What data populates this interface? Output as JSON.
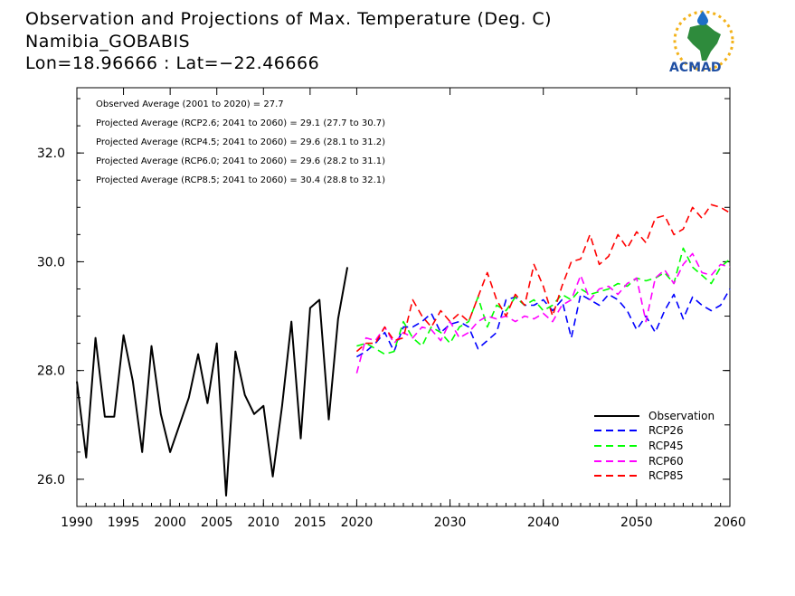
{
  "title_lines": [
    "Observation and Projections of Max. Temperature (Deg. C)",
    "Namibia_GOBABIS",
    "Lon=18.96666 : Lat=−22.46666"
  ],
  "logo": {
    "text": "ACMAD",
    "icon": "africa-map-icon"
  },
  "annotations": [
    "Observed Average (2001 to 2020) = 27.7",
    "Projected Average (RCP2.6; 2041 to 2060) = 29.1 (27.7 to 30.7)",
    "Projected Average (RCP4.5; 2041 to 2060) = 29.6 (28.1 to 31.2)",
    "Projected Average (RCP6.0; 2041 to 2060) = 29.6 (28.2 to 31.1)",
    "Projected Average (RCP8.5; 2041 to 2060) = 30.4 (28.8 to 32.1)"
  ],
  "chart_data": {
    "type": "line",
    "xlim": [
      1990,
      2060
    ],
    "ylim": [
      25.5,
      33.2
    ],
    "x_ticks": [
      1990,
      1995,
      2000,
      2005,
      2010,
      2015,
      2020,
      2030,
      2040,
      2050,
      2060
    ],
    "y_ticks": [
      26.0,
      28.0,
      30.0,
      32.0
    ],
    "y_tick_labels": [
      "26.0",
      "28.0",
      "30.0",
      "32.0"
    ],
    "grid": false,
    "legend_position": "bottom-right",
    "series": [
      {
        "name": "Observation",
        "color": "#000000",
        "dash": "solid",
        "x": [
          1990,
          1991,
          1992,
          1993,
          1994,
          1995,
          1996,
          1997,
          1998,
          1999,
          2000,
          2001,
          2002,
          2003,
          2004,
          2005,
          2006,
          2007,
          2008,
          2009,
          2010,
          2011,
          2012,
          2013,
          2014,
          2015,
          2016,
          2017,
          2018,
          2019
        ],
        "y": [
          27.8,
          26.4,
          28.6,
          27.15,
          27.15,
          28.65,
          27.8,
          26.5,
          28.45,
          27.2,
          26.5,
          27.0,
          27.5,
          28.3,
          27.4,
          28.5,
          25.7,
          28.35,
          27.55,
          27.2,
          27.35,
          26.05,
          27.35,
          28.9,
          26.75,
          29.15,
          29.3,
          27.1,
          28.95,
          29.9
        ]
      },
      {
        "name": "RCP26",
        "color": "#0000ff",
        "dash": "dashed",
        "x": [
          2020,
          2021,
          2022,
          2023,
          2024,
          2025,
          2026,
          2027,
          2028,
          2029,
          2030,
          2031,
          2032,
          2033,
          2034,
          2035,
          2036,
          2037,
          2038,
          2039,
          2040,
          2041,
          2042,
          2043,
          2044,
          2045,
          2046,
          2047,
          2048,
          2049,
          2050,
          2051,
          2052,
          2053,
          2054,
          2055,
          2056,
          2057,
          2058,
          2059,
          2060
        ],
        "y": [
          28.25,
          28.35,
          28.5,
          28.7,
          28.35,
          28.8,
          28.8,
          28.9,
          29.05,
          28.7,
          28.85,
          28.9,
          28.8,
          28.4,
          28.55,
          28.7,
          29.3,
          29.35,
          29.2,
          29.2,
          29.3,
          29.1,
          29.3,
          28.6,
          29.4,
          29.3,
          29.2,
          29.4,
          29.3,
          29.1,
          28.75,
          29.0,
          28.7,
          29.1,
          29.4,
          28.95,
          29.35,
          29.2,
          29.1,
          29.2,
          29.5
        ]
      },
      {
        "name": "RCP45",
        "color": "#00ff00",
        "dash": "dashed",
        "x": [
          2020,
          2021,
          2022,
          2023,
          2024,
          2025,
          2026,
          2027,
          2028,
          2029,
          2030,
          2031,
          2032,
          2033,
          2034,
          2035,
          2036,
          2037,
          2038,
          2039,
          2040,
          2041,
          2042,
          2043,
          2044,
          2045,
          2046,
          2047,
          2048,
          2049,
          2050,
          2051,
          2052,
          2053,
          2054,
          2055,
          2056,
          2057,
          2058,
          2059,
          2060
        ],
        "y": [
          28.45,
          28.5,
          28.4,
          28.3,
          28.35,
          28.9,
          28.6,
          28.45,
          28.8,
          28.7,
          28.5,
          28.8,
          28.9,
          29.35,
          28.8,
          29.2,
          29.1,
          29.35,
          29.2,
          29.3,
          29.1,
          29.2,
          29.4,
          29.3,
          29.5,
          29.4,
          29.45,
          29.5,
          29.6,
          29.55,
          29.7,
          29.65,
          29.7,
          29.8,
          29.6,
          30.25,
          29.9,
          29.75,
          29.6,
          29.9,
          30.05
        ]
      },
      {
        "name": "RCP60",
        "color": "#ff00ff",
        "dash": "dashed",
        "x": [
          2020,
          2021,
          2022,
          2023,
          2024,
          2025,
          2026,
          2027,
          2028,
          2029,
          2030,
          2031,
          2032,
          2033,
          2034,
          2035,
          2036,
          2037,
          2038,
          2039,
          2040,
          2041,
          2042,
          2043,
          2044,
          2045,
          2046,
          2047,
          2048,
          2049,
          2050,
          2051,
          2052,
          2053,
          2054,
          2055,
          2056,
          2057,
          2058,
          2059,
          2060
        ],
        "y": [
          27.95,
          28.6,
          28.55,
          28.8,
          28.5,
          28.7,
          28.6,
          28.8,
          28.75,
          28.55,
          28.9,
          28.6,
          28.7,
          28.9,
          29.0,
          28.95,
          29.0,
          28.9,
          29.0,
          28.95,
          29.05,
          28.9,
          29.2,
          29.3,
          29.75,
          29.3,
          29.5,
          29.55,
          29.4,
          29.6,
          29.7,
          28.9,
          29.7,
          29.85,
          29.6,
          29.95,
          30.15,
          29.8,
          29.75,
          29.95,
          29.9
        ]
      },
      {
        "name": "RCP85",
        "color": "#ff0000",
        "dash": "dashed",
        "x": [
          2020,
          2021,
          2022,
          2023,
          2024,
          2025,
          2026,
          2027,
          2028,
          2029,
          2030,
          2031,
          2032,
          2033,
          2034,
          2035,
          2036,
          2037,
          2038,
          2039,
          2040,
          2041,
          2042,
          2043,
          2044,
          2045,
          2046,
          2047,
          2048,
          2049,
          2050,
          2051,
          2052,
          2053,
          2054,
          2055,
          2056,
          2057,
          2058,
          2059,
          2060
        ],
        "y": [
          28.35,
          28.5,
          28.5,
          28.8,
          28.55,
          28.6,
          29.3,
          29.0,
          28.8,
          29.1,
          28.9,
          29.05,
          28.9,
          29.35,
          29.8,
          29.3,
          29.0,
          29.4,
          29.2,
          29.95,
          29.55,
          29.0,
          29.55,
          30.0,
          30.05,
          30.5,
          29.95,
          30.1,
          30.5,
          30.25,
          30.55,
          30.35,
          30.8,
          30.85,
          30.5,
          30.6,
          31.0,
          30.8,
          31.05,
          31.0,
          30.9
        ]
      }
    ]
  }
}
